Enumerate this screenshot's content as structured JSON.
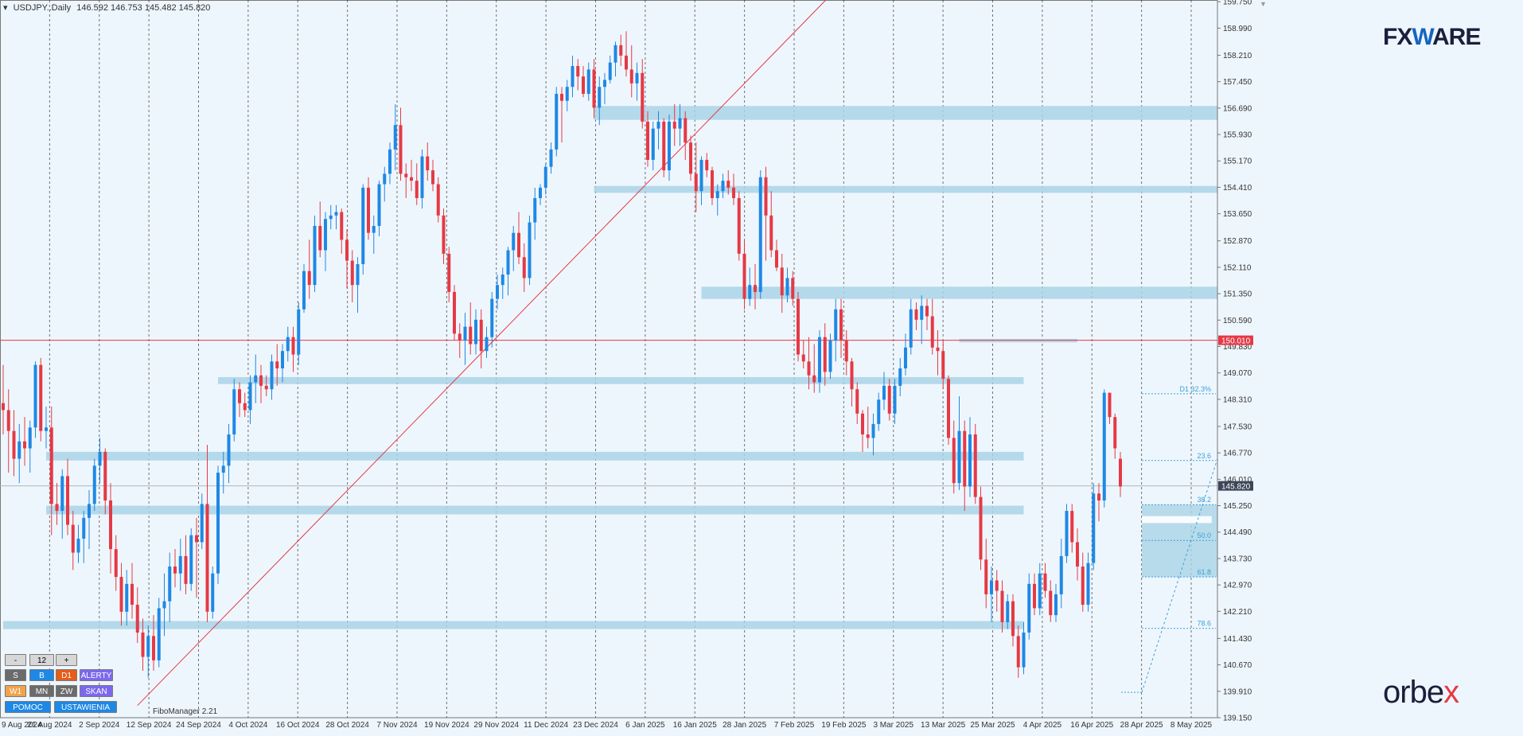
{
  "header": {
    "symbol": "USDJPY..Daily",
    "ohlc": "146.592 146.753 145.482 145.820"
  },
  "watermark": {
    "brand": "FXWARE",
    "broker": "orbex"
  },
  "fibo_manager_label": "FiboManager 2.21",
  "panel": {
    "minus": "-",
    "count": "12",
    "plus": "+",
    "s": "S",
    "b": "B",
    "d1": "D1",
    "alerty": "ALERTY",
    "w1": "W1",
    "mn": "MN",
    "zw": "ZW",
    "skan": "SKAN",
    "pomoc": "POMOC",
    "ustawienia": "USTAWIENIA"
  },
  "colors": {
    "background": "#eef6fd",
    "bull": "#1e88e5",
    "bear": "#e53945",
    "zone": "#a9d4e6",
    "red_line": "#e53945",
    "fib": "#3aa0d8",
    "current_price_tag": "#3d4658",
    "level_tag": "#e53945"
  },
  "chart_data": {
    "type": "candlestick",
    "instrument": "USDJPY",
    "timeframe": "Daily",
    "ylim": [
      139.15,
      159.8
    ],
    "y_ticks": [
      "159.750",
      "158.990",
      "158.210",
      "157.450",
      "156.690",
      "155.930",
      "155.170",
      "154.410",
      "153.650",
      "152.870",
      "152.110",
      "151.350",
      "150.590",
      "149.830",
      "149.070",
      "148.310",
      "147.530",
      "146.770",
      "146.010",
      "145.250",
      "144.490",
      "143.730",
      "142.970",
      "142.210",
      "141.430",
      "140.670",
      "139.910",
      "139.150"
    ],
    "x_labels": [
      "9 Aug 2024",
      "21 Aug 2024",
      "2 Sep 2024",
      "12 Sep 2024",
      "24 Sep 2024",
      "4 Oct 2024",
      "16 Oct 2024",
      "28 Oct 2024",
      "7 Nov 2024",
      "19 Nov 2024",
      "29 Nov 2024",
      "11 Dec 2024",
      "23 Dec 2024",
      "6 Jan 2025",
      "16 Jan 2025",
      "28 Jan 2025",
      "7 Feb 2025",
      "19 Feb 2025",
      "3 Mar 2025",
      "13 Mar 2025",
      "25 Mar 2025",
      "4 Apr 2025",
      "16 Apr 2025",
      "28 Apr 2025",
      "8 May 2025"
    ],
    "current_price": 145.82,
    "current_price_label": "145.820",
    "horizontal_level": 150.01,
    "horizontal_level_label": "150.010",
    "fib_levels": [
      {
        "label": "D1 32.3%",
        "price": 148.47
      },
      {
        "label": "23.6",
        "price": 146.55
      },
      {
        "label": "38.2",
        "price": 145.28
      },
      {
        "label": "50.0",
        "price": 144.25
      },
      {
        "label": "61.8",
        "price": 143.2
      },
      {
        "label": "78.6",
        "price": 141.72
      }
    ],
    "fib_anchor_low": 139.88,
    "candles": [
      [
        148.2,
        149.3,
        147.3,
        148.0
      ],
      [
        148.0,
        148.6,
        146.2,
        147.4
      ],
      [
        147.4,
        148.0,
        146.1,
        146.6
      ],
      [
        146.6,
        147.6,
        145.9,
        147.1
      ],
      [
        147.1,
        147.8,
        146.4,
        146.9
      ],
      [
        146.9,
        147.7,
        146.2,
        147.5
      ],
      [
        147.5,
        149.4,
        147.2,
        149.3
      ],
      [
        149.3,
        149.5,
        147.1,
        147.4
      ],
      [
        147.4,
        148.1,
        146.9,
        147.5
      ],
      [
        147.5,
        148.1,
        144.4,
        145.3
      ],
      [
        145.3,
        145.9,
        144.7,
        145.1
      ],
      [
        145.1,
        146.3,
        144.3,
        146.1
      ],
      [
        146.1,
        146.6,
        144.4,
        144.7
      ],
      [
        144.7,
        145.1,
        143.4,
        143.9
      ],
      [
        143.9,
        144.7,
        143.6,
        144.3
      ],
      [
        144.3,
        145.1,
        143.6,
        144.9
      ],
      [
        144.9,
        145.7,
        144.0,
        145.3
      ],
      [
        145.3,
        146.6,
        145.1,
        146.4
      ],
      [
        146.4,
        147.2,
        145.9,
        146.8
      ],
      [
        146.8,
        146.9,
        145.0,
        145.4
      ],
      [
        145.4,
        145.9,
        143.3,
        144.0
      ],
      [
        144.0,
        144.4,
        142.8,
        143.2
      ],
      [
        143.2,
        143.6,
        141.8,
        142.2
      ],
      [
        142.2,
        143.4,
        141.8,
        143.0
      ],
      [
        143.0,
        143.6,
        142.0,
        142.4
      ],
      [
        142.4,
        142.9,
        141.3,
        141.6
      ],
      [
        141.6,
        142.0,
        140.5,
        140.9
      ],
      [
        140.9,
        141.8,
        140.3,
        141.5
      ],
      [
        141.5,
        142.1,
        140.5,
        140.8
      ],
      [
        140.8,
        142.6,
        140.6,
        142.3
      ],
      [
        142.3,
        143.3,
        141.5,
        142.5
      ],
      [
        142.5,
        143.9,
        141.9,
        143.5
      ],
      [
        143.5,
        144.0,
        142.9,
        143.3
      ],
      [
        143.3,
        144.3,
        142.8,
        143.8
      ],
      [
        143.8,
        144.4,
        142.7,
        143.0
      ],
      [
        143.0,
        144.6,
        142.8,
        144.4
      ],
      [
        144.4,
        144.9,
        142.6,
        144.2
      ],
      [
        144.2,
        145.6,
        144.0,
        145.3
      ],
      [
        145.3,
        147.0,
        141.9,
        142.2
      ],
      [
        142.2,
        143.5,
        142.0,
        143.3
      ],
      [
        143.3,
        146.4,
        143.0,
        146.2
      ],
      [
        146.2,
        146.8,
        145.6,
        146.4
      ],
      [
        146.4,
        147.6,
        145.9,
        147.3
      ],
      [
        147.3,
        148.9,
        147.1,
        148.6
      ],
      [
        148.6,
        148.8,
        147.8,
        148.2
      ],
      [
        148.2,
        148.5,
        147.8,
        148.0
      ],
      [
        148.0,
        149.0,
        147.6,
        148.8
      ],
      [
        148.8,
        149.6,
        148.2,
        149.0
      ],
      [
        149.0,
        149.3,
        148.2,
        148.7
      ],
      [
        148.7,
        149.0,
        148.4,
        148.6
      ],
      [
        148.6,
        149.6,
        148.3,
        149.4
      ],
      [
        149.4,
        149.9,
        148.7,
        149.2
      ],
      [
        149.2,
        149.9,
        148.8,
        149.7
      ],
      [
        149.7,
        150.4,
        149.4,
        150.1
      ],
      [
        150.1,
        150.4,
        149.1,
        149.6
      ],
      [
        149.6,
        151.1,
        149.3,
        150.9
      ],
      [
        150.9,
        152.2,
        150.8,
        152.0
      ],
      [
        152.0,
        152.9,
        151.2,
        151.6
      ],
      [
        151.6,
        153.6,
        151.4,
        153.3
      ],
      [
        153.3,
        154.0,
        152.4,
        152.6
      ],
      [
        152.6,
        153.7,
        152.0,
        153.5
      ],
      [
        153.5,
        153.9,
        153.2,
        153.6
      ],
      [
        153.6,
        153.9,
        153.2,
        153.7
      ],
      [
        153.7,
        153.8,
        152.5,
        152.9
      ],
      [
        152.9,
        153.2,
        151.5,
        152.3
      ],
      [
        152.3,
        152.6,
        151.1,
        151.6
      ],
      [
        151.6,
        152.4,
        150.8,
        152.2
      ],
      [
        152.2,
        154.5,
        151.9,
        154.4
      ],
      [
        154.4,
        154.7,
        152.9,
        153.1
      ],
      [
        153.1,
        153.6,
        152.5,
        153.3
      ],
      [
        153.3,
        154.6,
        153.0,
        154.5
      ],
      [
        154.5,
        155.0,
        154.0,
        154.8
      ],
      [
        154.8,
        155.7,
        154.5,
        155.5
      ],
      [
        155.5,
        156.8,
        154.9,
        156.2
      ],
      [
        156.2,
        156.7,
        154.6,
        154.8
      ],
      [
        154.8,
        155.1,
        154.1,
        154.7
      ],
      [
        154.7,
        155.2,
        154.3,
        154.6
      ],
      [
        154.6,
        155.1,
        153.9,
        154.1
      ],
      [
        154.1,
        155.5,
        153.8,
        155.3
      ],
      [
        155.3,
        155.7,
        154.6,
        154.9
      ],
      [
        154.9,
        155.2,
        154.3,
        154.5
      ],
      [
        154.5,
        154.7,
        153.4,
        153.6
      ],
      [
        153.6,
        153.8,
        152.2,
        152.5
      ],
      [
        152.5,
        152.7,
        151.1,
        151.4
      ],
      [
        151.4,
        151.6,
        150.0,
        150.2
      ],
      [
        150.2,
        150.5,
        149.5,
        150.0
      ],
      [
        150.0,
        150.8,
        149.3,
        150.4
      ],
      [
        150.4,
        151.1,
        149.6,
        149.9
      ],
      [
        149.9,
        150.9,
        149.6,
        150.6
      ],
      [
        150.6,
        150.9,
        149.2,
        149.7
      ],
      [
        149.7,
        150.4,
        149.5,
        150.1
      ],
      [
        150.1,
        151.4,
        149.8,
        151.2
      ],
      [
        151.2,
        151.9,
        150.9,
        151.6
      ],
      [
        151.6,
        152.1,
        151.2,
        151.9
      ],
      [
        151.9,
        152.7,
        151.3,
        152.6
      ],
      [
        152.6,
        153.3,
        152.0,
        153.1
      ],
      [
        153.1,
        153.7,
        152.2,
        152.4
      ],
      [
        152.4,
        152.8,
        151.4,
        151.8
      ],
      [
        151.8,
        153.6,
        151.6,
        153.4
      ],
      [
        153.4,
        154.4,
        152.9,
        154.1
      ],
      [
        154.1,
        154.5,
        153.9,
        154.4
      ],
      [
        154.4,
        155.1,
        154.2,
        155.0
      ],
      [
        155.0,
        155.7,
        154.8,
        155.5
      ],
      [
        155.5,
        157.3,
        155.3,
        157.1
      ],
      [
        157.1,
        157.3,
        155.7,
        156.9
      ],
      [
        156.9,
        157.5,
        156.6,
        157.3
      ],
      [
        157.3,
        158.2,
        157.0,
        157.9
      ],
      [
        157.9,
        158.1,
        157.2,
        157.6
      ],
      [
        157.6,
        157.9,
        157.0,
        157.1
      ],
      [
        157.1,
        158.0,
        156.9,
        157.8
      ],
      [
        157.8,
        158.1,
        156.4,
        156.7
      ],
      [
        156.7,
        157.6,
        156.2,
        157.3
      ],
      [
        157.3,
        157.7,
        156.8,
        157.5
      ],
      [
        157.5,
        158.2,
        157.4,
        158.0
      ],
      [
        158.0,
        158.6,
        157.6,
        158.5
      ],
      [
        158.5,
        158.8,
        157.9,
        158.2
      ],
      [
        158.2,
        158.9,
        157.6,
        157.8
      ],
      [
        157.8,
        158.5,
        157.0,
        157.4
      ],
      [
        157.4,
        158.0,
        156.9,
        157.7
      ],
      [
        157.7,
        158.1,
        156.1,
        156.3
      ],
      [
        156.3,
        156.6,
        155.0,
        155.2
      ],
      [
        155.2,
        156.3,
        154.9,
        156.1
      ],
      [
        156.1,
        156.6,
        155.5,
        156.3
      ],
      [
        156.3,
        156.4,
        154.7,
        154.9
      ],
      [
        154.9,
        156.5,
        154.6,
        156.3
      ],
      [
        156.3,
        156.8,
        155.6,
        156.1
      ],
      [
        156.1,
        156.8,
        155.6,
        156.4
      ],
      [
        156.4,
        156.6,
        155.2,
        155.7
      ],
      [
        155.7,
        155.9,
        154.6,
        154.8
      ],
      [
        154.8,
        155.7,
        153.7,
        154.3
      ],
      [
        154.3,
        155.3,
        153.9,
        155.2
      ],
      [
        155.2,
        155.4,
        154.7,
        154.9
      ],
      [
        154.9,
        155.0,
        153.9,
        154.1
      ],
      [
        154.1,
        154.5,
        153.6,
        154.3
      ],
      [
        154.3,
        154.8,
        154.1,
        154.6
      ],
      [
        154.6,
        154.9,
        154.2,
        154.4
      ],
      [
        154.4,
        154.8,
        153.9,
        154.1
      ],
      [
        154.1,
        154.3,
        152.3,
        152.5
      ],
      [
        152.5,
        152.9,
        150.9,
        151.2
      ],
      [
        151.2,
        152.1,
        151.0,
        151.6
      ],
      [
        151.6,
        152.2,
        150.9,
        151.4
      ],
      [
        151.4,
        154.9,
        151.2,
        154.7
      ],
      [
        154.7,
        155.0,
        152.3,
        153.6
      ],
      [
        153.6,
        154.3,
        152.4,
        152.6
      ],
      [
        152.6,
        152.9,
        152.0,
        152.1
      ],
      [
        152.1,
        152.5,
        150.8,
        151.3
      ],
      [
        151.3,
        152.1,
        151.1,
        151.8
      ],
      [
        151.8,
        152.0,
        151.0,
        151.2
      ],
      [
        151.2,
        151.4,
        149.4,
        149.6
      ],
      [
        149.6,
        150.0,
        149.2,
        149.4
      ],
      [
        149.4,
        150.1,
        148.6,
        149.0
      ],
      [
        149.0,
        149.9,
        148.5,
        148.8
      ],
      [
        148.8,
        150.3,
        148.5,
        150.1
      ],
      [
        150.1,
        150.5,
        148.7,
        149.1
      ],
      [
        149.1,
        150.2,
        148.9,
        150.0
      ],
      [
        150.0,
        151.2,
        149.4,
        150.9
      ],
      [
        150.9,
        151.2,
        149.5,
        150.0
      ],
      [
        150.0,
        150.3,
        149.0,
        149.4
      ],
      [
        149.4,
        149.5,
        148.1,
        148.6
      ],
      [
        148.6,
        148.8,
        147.6,
        147.9
      ],
      [
        147.9,
        148.0,
        146.8,
        147.3
      ],
      [
        147.3,
        148.1,
        146.9,
        147.2
      ],
      [
        147.2,
        147.9,
        146.7,
        147.6
      ],
      [
        147.6,
        148.5,
        147.4,
        148.3
      ],
      [
        148.3,
        149.1,
        148.0,
        148.7
      ],
      [
        148.7,
        148.9,
        147.7,
        147.9
      ],
      [
        147.9,
        148.9,
        147.6,
        148.7
      ],
      [
        148.7,
        149.5,
        148.4,
        149.2
      ],
      [
        149.2,
        150.2,
        149.0,
        149.8
      ],
      [
        149.8,
        151.2,
        149.6,
        150.9
      ],
      [
        150.9,
        151.1,
        150.3,
        150.6
      ],
      [
        150.6,
        151.3,
        149.9,
        151.0
      ],
      [
        151.0,
        151.2,
        150.3,
        150.7
      ],
      [
        150.7,
        151.2,
        149.6,
        149.8
      ],
      [
        149.8,
        150.3,
        149.0,
        149.7
      ],
      [
        149.7,
        150.0,
        148.6,
        148.9
      ],
      [
        148.9,
        149.0,
        147.0,
        147.2
      ],
      [
        147.2,
        147.7,
        145.6,
        145.9
      ],
      [
        145.9,
        148.4,
        145.7,
        147.4
      ],
      [
        147.4,
        147.7,
        145.1,
        145.8
      ],
      [
        145.8,
        147.8,
        145.5,
        147.3
      ],
      [
        147.3,
        147.6,
        145.3,
        145.5
      ],
      [
        145.5,
        145.8,
        143.4,
        143.7
      ],
      [
        143.7,
        144.3,
        142.3,
        142.7
      ],
      [
        142.7,
        143.5,
        141.9,
        143.1
      ],
      [
        143.1,
        143.4,
        142.2,
        142.8
      ],
      [
        142.8,
        143.1,
        141.6,
        141.9
      ],
      [
        141.9,
        142.7,
        141.7,
        142.5
      ],
      [
        142.5,
        142.7,
        141.2,
        141.5
      ],
      [
        141.5,
        141.8,
        140.3,
        140.6
      ],
      [
        140.6,
        141.9,
        140.4,
        141.6
      ],
      [
        141.6,
        143.3,
        141.4,
        143.0
      ],
      [
        143.0,
        143.3,
        142.1,
        142.3
      ],
      [
        142.3,
        143.6,
        142.1,
        143.3
      ],
      [
        143.3,
        143.6,
        142.6,
        142.8
      ],
      [
        142.8,
        143.1,
        141.9,
        142.1
      ],
      [
        142.1,
        143.0,
        141.9,
        142.7
      ],
      [
        142.7,
        144.3,
        142.3,
        143.8
      ],
      [
        143.8,
        145.3,
        143.6,
        145.1
      ],
      [
        145.1,
        145.3,
        143.9,
        144.2
      ],
      [
        144.2,
        144.6,
        143.1,
        143.5
      ],
      [
        143.5,
        143.9,
        142.2,
        142.4
      ],
      [
        142.4,
        143.9,
        142.2,
        143.6
      ],
      [
        143.6,
        145.9,
        143.4,
        145.6
      ],
      [
        145.6,
        145.9,
        144.8,
        145.4
      ],
      [
        145.4,
        148.6,
        145.2,
        148.5
      ],
      [
        148.5,
        148.5,
        147.6,
        147.8
      ],
      [
        147.8,
        147.9,
        146.6,
        146.9
      ],
      [
        146.6,
        146.8,
        145.5,
        145.8
      ]
    ]
  }
}
